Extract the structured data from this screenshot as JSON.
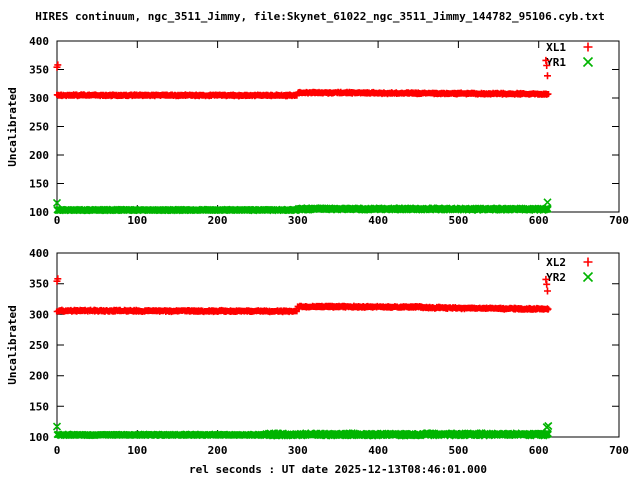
{
  "title": "HIRES continuum, ngc_3511_Jimmy, file:Skynet_61022_ngc_3511_Jimmy_144782_95106.cyb.txt",
  "colors": {
    "red": "#ff0000",
    "green": "#00b400",
    "axis": "#000000",
    "background": "#ffffff"
  },
  "chart_data": [
    {
      "type": "scatter",
      "panel": "top",
      "ylabel": "Uncalibrated",
      "xlim": [
        0,
        700
      ],
      "ylim": [
        100,
        400
      ],
      "xticks": [
        0,
        100,
        200,
        300,
        400,
        500,
        600,
        700
      ],
      "yticks": [
        100,
        150,
        200,
        250,
        300,
        350,
        400
      ],
      "grid": false,
      "legend_position": "top-right-inside",
      "series": [
        {
          "name": "XL1",
          "color": "#ff0000",
          "marker": "plus",
          "bands": [
            {
              "x0": 0,
              "x1": 299,
              "y0": 305,
              "y1": 304.5,
              "spread": 2.0,
              "n": 600
            },
            {
              "x0": 300,
              "x1": 612,
              "y0": 309.5,
              "y1": 307,
              "spread": 2.0,
              "n": 630
            }
          ],
          "outliers": [
            [
              0,
              354
            ],
            [
              1,
              358
            ],
            [
              609,
              366
            ],
            [
              610,
              357
            ],
            [
              611,
              339
            ]
          ]
        },
        {
          "name": "YR1",
          "color": "#00b400",
          "marker": "cross",
          "bands": [
            {
              "x0": 0,
              "x1": 299,
              "y0": 103.5,
              "y1": 103.5,
              "spread": 1.5,
              "n": 600
            },
            {
              "x0": 300,
              "x1": 612,
              "y0": 105.5,
              "y1": 105,
              "spread": 2.5,
              "n": 630
            }
          ],
          "outliers": [
            [
              0,
              116
            ],
            [
              611,
              117
            ]
          ]
        }
      ]
    },
    {
      "type": "scatter",
      "panel": "bottom",
      "ylabel": "Uncalibrated",
      "xlabel": "rel seconds : UT date 2025-12-13T08:46:01.000",
      "xlim": [
        0,
        700
      ],
      "ylim": [
        100,
        400
      ],
      "xticks": [
        0,
        100,
        200,
        300,
        400,
        500,
        600,
        700
      ],
      "yticks": [
        100,
        150,
        200,
        250,
        300,
        350,
        400
      ],
      "grid": false,
      "legend_position": "top-right-inside",
      "series": [
        {
          "name": "XL2",
          "color": "#ff0000",
          "marker": "plus",
          "bands": [
            {
              "x0": 0,
              "x1": 299,
              "y0": 306,
              "y1": 305,
              "spread": 2.0,
              "n": 600
            },
            {
              "x0": 300,
              "x1": 455,
              "y0": 312.5,
              "y1": 312,
              "spread": 2.0,
              "n": 320
            },
            {
              "x0": 455,
              "x1": 612,
              "y0": 311,
              "y1": 308.5,
              "spread": 2.0,
              "n": 320
            }
          ],
          "outliers": [
            [
              0,
              354
            ],
            [
              1,
              358
            ],
            [
              609,
              357
            ],
            [
              610,
              349
            ],
            [
              611,
              338
            ]
          ]
        },
        {
          "name": "YR2",
          "color": "#00b400",
          "marker": "cross",
          "bands": [
            {
              "x0": 0,
              "x1": 260,
              "y0": 103.5,
              "y1": 103.5,
              "spread": 1.5,
              "n": 520
            },
            {
              "x0": 260,
              "x1": 612,
              "y0": 104,
              "y1": 104.5,
              "spread": 3.0,
              "n": 710
            }
          ],
          "outliers": [
            [
              0,
              117
            ],
            [
              610,
              116
            ],
            [
              612,
              118
            ]
          ]
        }
      ]
    }
  ]
}
